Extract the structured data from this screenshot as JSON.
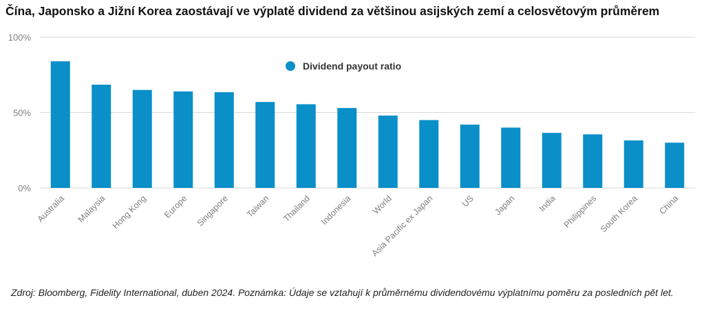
{
  "title": "Čína, Japonsko a Jižní Korea zaostávají ve výplatě dividend za většinou asijských zemí a celosvětovým průměrem",
  "note": "Zdroj: Bloomberg, Fidelity International, duben 2024. Poznámka: Údaje se vztahují k průměrnému dividendovému výplatnímu poměru za posledních pět let.",
  "chart_data": {
    "type": "bar",
    "categories": [
      "Australia",
      "Malaysia",
      "Hong Kong",
      "Europe",
      "Singapore",
      "Taiwan",
      "Thailand",
      "Indonesia",
      "World",
      "Asia Pacific ex Japan",
      "US",
      "Japan",
      "India",
      "Philippines",
      "South Korea",
      "China"
    ],
    "series": [
      {
        "name": "Dividend payout ratio",
        "values": [
          84,
          68.5,
          65,
          64,
          63.5,
          57,
          55.5,
          53,
          48,
          45,
          42,
          40,
          36.5,
          35.5,
          31.5,
          30
        ]
      }
    ],
    "yticks": [
      "0%",
      "50%",
      "100%"
    ],
    "ylim": [
      0,
      100
    ],
    "grid": true,
    "legend_position": "top-center",
    "colors": {
      "bar": "#0a8fc9",
      "grid": "#d9d9d9",
      "axis_text": "#7f7f7f"
    }
  }
}
